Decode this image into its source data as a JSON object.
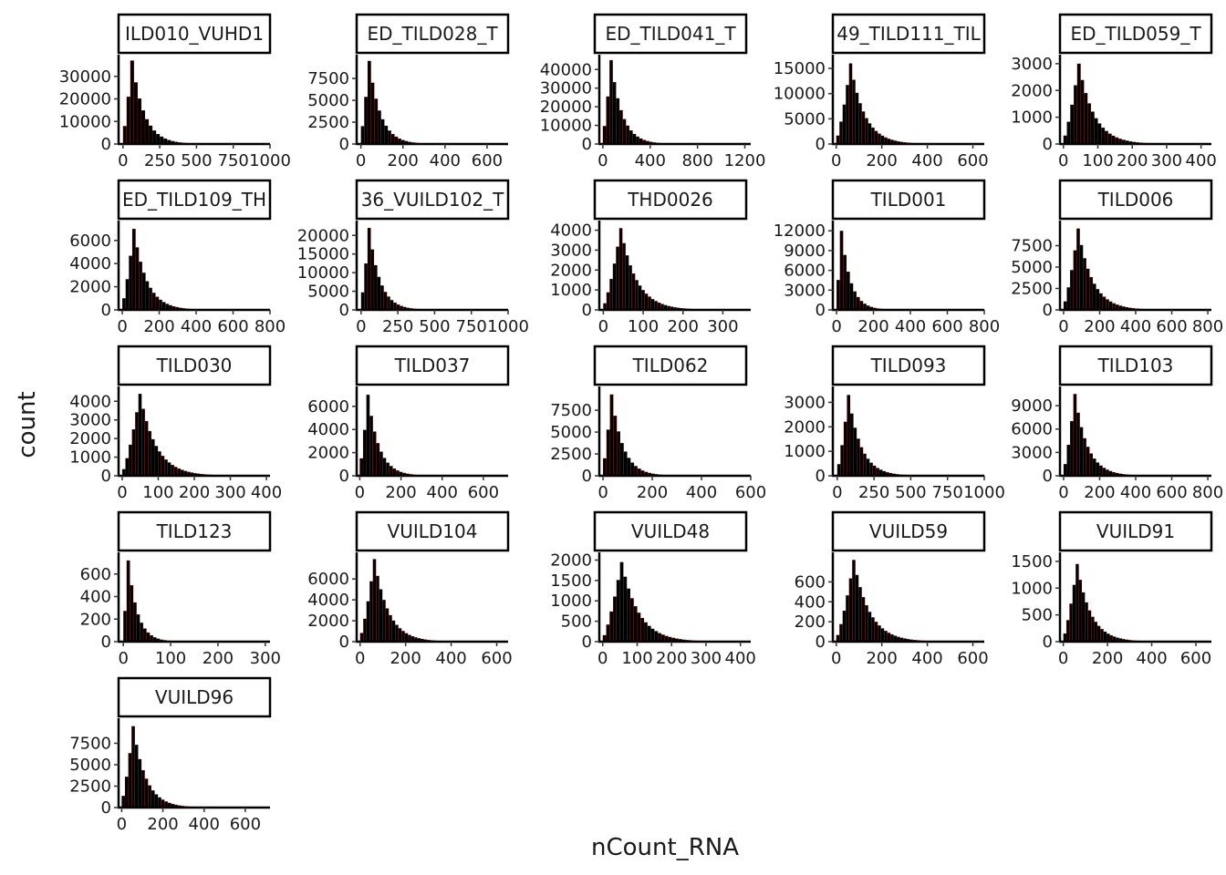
{
  "figure": {
    "xlabel": "nCount_RNA",
    "ylabel": "count",
    "bar_fill": "#000000",
    "bar_edge": "#ff3b3b",
    "strip_border": "#000000",
    "strip_fill": "#ffffff"
  },
  "chart_data": [
    {
      "type": "bar",
      "title": "ILD010_VUHD1",
      "xlim": [
        -30,
        1000
      ],
      "ylim": [
        0,
        38000
      ],
      "x_ticks": [
        0,
        250,
        500,
        750,
        1000
      ],
      "x_tick_labels": [
        "0",
        "250",
        "500",
        "750",
        "1000"
      ],
      "y_ticks": [
        0,
        10000,
        20000,
        30000
      ],
      "y_tick_labels": [
        "0",
        "10000",
        "20000",
        "30000"
      ],
      "bin_width": 25,
      "bin_start": 0,
      "peak_bin": 2,
      "peak_value": 37000
    },
    {
      "type": "bar",
      "title": "ED_TILD028_T",
      "xlim": [
        -20,
        700
      ],
      "ylim": [
        0,
        9800
      ],
      "x_ticks": [
        0,
        200,
        400,
        600
      ],
      "x_tick_labels": [
        "0",
        "200",
        "400",
        "600"
      ],
      "y_ticks": [
        0,
        2500,
        5000,
        7500
      ],
      "y_tick_labels": [
        "0",
        "2500",
        "5000",
        "7500"
      ],
      "bin_width": 16,
      "bin_start": 0,
      "peak_bin": 2,
      "peak_value": 9500
    },
    {
      "type": "bar",
      "title": "ED_TILD041_T",
      "xlim": [
        -30,
        1250
      ],
      "ylim": [
        0,
        46000
      ],
      "x_ticks": [
        0,
        400,
        800,
        1200
      ],
      "x_tick_labels": [
        "0",
        "400",
        "800",
        "1200"
      ],
      "y_ticks": [
        0,
        10000,
        20000,
        30000,
        40000
      ],
      "y_tick_labels": [
        "0",
        "10000",
        "20000",
        "30000",
        "40000"
      ],
      "bin_width": 28,
      "bin_start": 0,
      "peak_bin": 2,
      "peak_value": 45000
    },
    {
      "type": "bar",
      "title": "49_TILD111_TIL",
      "xlim": [
        -15,
        650
      ],
      "ylim": [
        0,
        17000
      ],
      "x_ticks": [
        0,
        200,
        400,
        600
      ],
      "x_tick_labels": [
        "0",
        "200",
        "400",
        "600"
      ],
      "y_ticks": [
        0,
        5000,
        10000,
        15000
      ],
      "y_tick_labels": [
        "0",
        "5000",
        "10000",
        "15000"
      ],
      "bin_width": 14,
      "bin_start": 0,
      "peak_bin": 4,
      "peak_value": 16000
    },
    {
      "type": "bar",
      "title": "ED_TILD059_T",
      "xlim": [
        -10,
        430
      ],
      "ylim": [
        0,
        3200
      ],
      "x_ticks": [
        0,
        100,
        200,
        300,
        400
      ],
      "x_tick_labels": [
        "0",
        "100",
        "200",
        "300",
        "400"
      ],
      "y_ticks": [
        0,
        1000,
        2000,
        3000
      ],
      "y_tick_labels": [
        "0",
        "1000",
        "2000",
        "3000"
      ],
      "bin_width": 10,
      "bin_start": 0,
      "peak_bin": 4,
      "peak_value": 3000
    },
    {
      "type": "bar",
      "title": "ED_TILD109_TH",
      "xlim": [
        -20,
        800
      ],
      "ylim": [
        0,
        7400
      ],
      "x_ticks": [
        0,
        200,
        400,
        600,
        800
      ],
      "x_tick_labels": [
        "0",
        "200",
        "400",
        "600",
        "800"
      ],
      "y_ticks": [
        0,
        2000,
        4000,
        6000
      ],
      "y_tick_labels": [
        "0",
        "2000",
        "4000",
        "6000"
      ],
      "bin_width": 18,
      "bin_start": 0,
      "peak_bin": 3,
      "peak_value": 7000
    },
    {
      "type": "bar",
      "title": "36_VUILD102_T",
      "xlim": [
        -30,
        1000
      ],
      "ylim": [
        0,
        23000
      ],
      "x_ticks": [
        0,
        250,
        500,
        750,
        1000
      ],
      "x_tick_labels": [
        "0",
        "250",
        "500",
        "750",
        "1000"
      ],
      "y_ticks": [
        0,
        5000,
        10000,
        15000,
        20000
      ],
      "y_tick_labels": [
        "0",
        "5000",
        "10000",
        "15000",
        "20000"
      ],
      "bin_width": 22,
      "bin_start": 0,
      "peak_bin": 2,
      "peak_value": 22000
    },
    {
      "type": "bar",
      "title": "THD0026",
      "xlim": [
        -10,
        370
      ],
      "ylim": [
        0,
        4300
      ],
      "x_ticks": [
        0,
        100,
        200,
        300
      ],
      "x_tick_labels": [
        "0",
        "100",
        "200",
        "300"
      ],
      "y_ticks": [
        0,
        1000,
        2000,
        3000,
        4000
      ],
      "y_tick_labels": [
        "0",
        "1000",
        "2000",
        "3000",
        "4000"
      ],
      "bin_width": 8,
      "bin_start": 0,
      "peak_bin": 5,
      "peak_value": 4100
    },
    {
      "type": "bar",
      "title": "TILD001",
      "xlim": [
        -20,
        800
      ],
      "ylim": [
        0,
        13000
      ],
      "x_ticks": [
        0,
        200,
        400,
        600,
        800
      ],
      "x_tick_labels": [
        "0",
        "200",
        "400",
        "600",
        "800"
      ],
      "y_ticks": [
        0,
        3000,
        6000,
        9000,
        12000
      ],
      "y_tick_labels": [
        "0",
        "3000",
        "6000",
        "9000",
        "12000"
      ],
      "bin_width": 18,
      "bin_start": 0,
      "peak_bin": 1,
      "peak_value": 12000
    },
    {
      "type": "bar",
      "title": "TILD006",
      "xlim": [
        -20,
        820
      ],
      "ylim": [
        0,
        10000
      ],
      "x_ticks": [
        0,
        200,
        400,
        600,
        800
      ],
      "x_tick_labels": [
        "0",
        "200",
        "400",
        "600",
        "800"
      ],
      "y_ticks": [
        0,
        2500,
        5000,
        7500
      ],
      "y_tick_labels": [
        "0",
        "2500",
        "5000",
        "7500"
      ],
      "bin_width": 18,
      "bin_start": 0,
      "peak_bin": 4,
      "peak_value": 9500
    },
    {
      "type": "bar",
      "title": "TILD030",
      "xlim": [
        -10,
        410
      ],
      "ylim": [
        0,
        4600
      ],
      "x_ticks": [
        0,
        100,
        200,
        300,
        400
      ],
      "x_tick_labels": [
        "0",
        "100",
        "200",
        "300",
        "400"
      ],
      "y_ticks": [
        0,
        1000,
        2000,
        3000,
        4000
      ],
      "y_tick_labels": [
        "0",
        "1000",
        "2000",
        "3000",
        "4000"
      ],
      "bin_width": 9,
      "bin_start": 0,
      "peak_bin": 5,
      "peak_value": 4400
    },
    {
      "type": "bar",
      "title": "TILD037",
      "xlim": [
        -15,
        720
      ],
      "ylim": [
        0,
        7400
      ],
      "x_ticks": [
        0,
        200,
        400,
        600
      ],
      "x_tick_labels": [
        "0",
        "200",
        "400",
        "600"
      ],
      "y_ticks": [
        0,
        2000,
        4000,
        6000
      ],
      "y_tick_labels": [
        "0",
        "2000",
        "4000",
        "6000"
      ],
      "bin_width": 16,
      "bin_start": 0,
      "peak_bin": 2,
      "peak_value": 7000
    },
    {
      "type": "bar",
      "title": "TILD062",
      "xlim": [
        -15,
        600
      ],
      "ylim": [
        0,
        9800
      ],
      "x_ticks": [
        0,
        200,
        400,
        600
      ],
      "x_tick_labels": [
        "0",
        "200",
        "400",
        "600"
      ],
      "y_ticks": [
        0,
        2500,
        5000,
        7500
      ],
      "y_tick_labels": [
        "0",
        "2500",
        "5000",
        "7500"
      ],
      "bin_width": 14,
      "bin_start": 0,
      "peak_bin": 2,
      "peak_value": 9300
    },
    {
      "type": "bar",
      "title": "TILD093",
      "xlim": [
        -30,
        1000
      ],
      "ylim": [
        0,
        3500
      ],
      "x_ticks": [
        0,
        250,
        500,
        750,
        1000
      ],
      "x_tick_labels": [
        "0",
        "250",
        "500",
        "750",
        "1000"
      ],
      "y_ticks": [
        0,
        1000,
        2000,
        3000
      ],
      "y_tick_labels": [
        "0",
        "1000",
        "2000",
        "3000"
      ],
      "bin_width": 22,
      "bin_start": 0,
      "peak_bin": 3,
      "peak_value": 3300
    },
    {
      "type": "bar",
      "title": "TILD103",
      "xlim": [
        -20,
        820
      ],
      "ylim": [
        0,
        11000
      ],
      "x_ticks": [
        0,
        200,
        400,
        600,
        800
      ],
      "x_tick_labels": [
        "0",
        "200",
        "400",
        "600",
        "800"
      ],
      "y_ticks": [
        0,
        3000,
        6000,
        9000
      ],
      "y_tick_labels": [
        "0",
        "3000",
        "6000",
        "9000"
      ],
      "bin_width": 18,
      "bin_start": 0,
      "peak_bin": 3,
      "peak_value": 10500
    },
    {
      "type": "bar",
      "title": "TILD123",
      "xlim": [
        -10,
        310
      ],
      "ylim": [
        0,
        760
      ],
      "x_ticks": [
        0,
        100,
        200,
        300
      ],
      "x_tick_labels": [
        "0",
        "100",
        "200",
        "300"
      ],
      "y_ticks": [
        0,
        200,
        400,
        600
      ],
      "y_tick_labels": [
        "0",
        "200",
        "400",
        "600"
      ],
      "bin_width": 7,
      "bin_start": 0,
      "peak_bin": 1,
      "peak_value": 720
    },
    {
      "type": "bar",
      "title": "VUILD104",
      "xlim": [
        -15,
        650
      ],
      "ylim": [
        0,
        8200
      ],
      "x_ticks": [
        0,
        200,
        400,
        600
      ],
      "x_tick_labels": [
        "0",
        "200",
        "400",
        "600"
      ],
      "y_ticks": [
        0,
        2000,
        4000,
        6000
      ],
      "y_tick_labels": [
        "0",
        "2000",
        "4000",
        "6000"
      ],
      "bin_width": 14,
      "bin_start": 0,
      "peak_bin": 4,
      "peak_value": 7900
    },
    {
      "type": "bar",
      "title": "VUILD48",
      "xlim": [
        -10,
        430
      ],
      "ylim": [
        0,
        2100
      ],
      "x_ticks": [
        0,
        100,
        200,
        300,
        400
      ],
      "x_tick_labels": [
        "0",
        "100",
        "200",
        "300",
        "400"
      ],
      "y_ticks": [
        0,
        500,
        1000,
        1500,
        2000
      ],
      "y_tick_labels": [
        "0",
        "500",
        "1000",
        "1500",
        "2000"
      ],
      "bin_width": 10,
      "bin_start": 0,
      "peak_bin": 5,
      "peak_value": 1950
    },
    {
      "type": "bar",
      "title": "VUILD59",
      "xlim": [
        -15,
        650
      ],
      "ylim": [
        0,
        860
      ],
      "x_ticks": [
        0,
        200,
        400,
        600
      ],
      "x_tick_labels": [
        "0",
        "200",
        "400",
        "600"
      ],
      "y_ticks": [
        0,
        200,
        400,
        600
      ],
      "y_tick_labels": [
        "0",
        "200",
        "400",
        "600"
      ],
      "bin_width": 14,
      "bin_start": 0,
      "peak_bin": 5,
      "peak_value": 820
    },
    {
      "type": "bar",
      "title": "VUILD91",
      "xlim": [
        -15,
        670
      ],
      "ylim": [
        0,
        1600
      ],
      "x_ticks": [
        0,
        200,
        400,
        600
      ],
      "x_tick_labels": [
        "0",
        "200",
        "400",
        "600"
      ],
      "y_ticks": [
        0,
        500,
        1000,
        1500
      ],
      "y_tick_labels": [
        "0",
        "500",
        "1000",
        "1500"
      ],
      "bin_width": 14,
      "bin_start": 0,
      "peak_bin": 4,
      "peak_value": 1450
    },
    {
      "type": "bar",
      "title": "VUILD96",
      "xlim": [
        -15,
        720
      ],
      "ylim": [
        0,
        10000
      ],
      "x_ticks": [
        0,
        200,
        400,
        600
      ],
      "x_tick_labels": [
        "0",
        "200",
        "400",
        "600"
      ],
      "y_ticks": [
        0,
        2500,
        5000,
        7500
      ],
      "y_tick_labels": [
        "0",
        "2500",
        "5000",
        "7500"
      ],
      "bin_width": 16,
      "bin_start": 0,
      "peak_bin": 3,
      "peak_value": 9500
    }
  ]
}
